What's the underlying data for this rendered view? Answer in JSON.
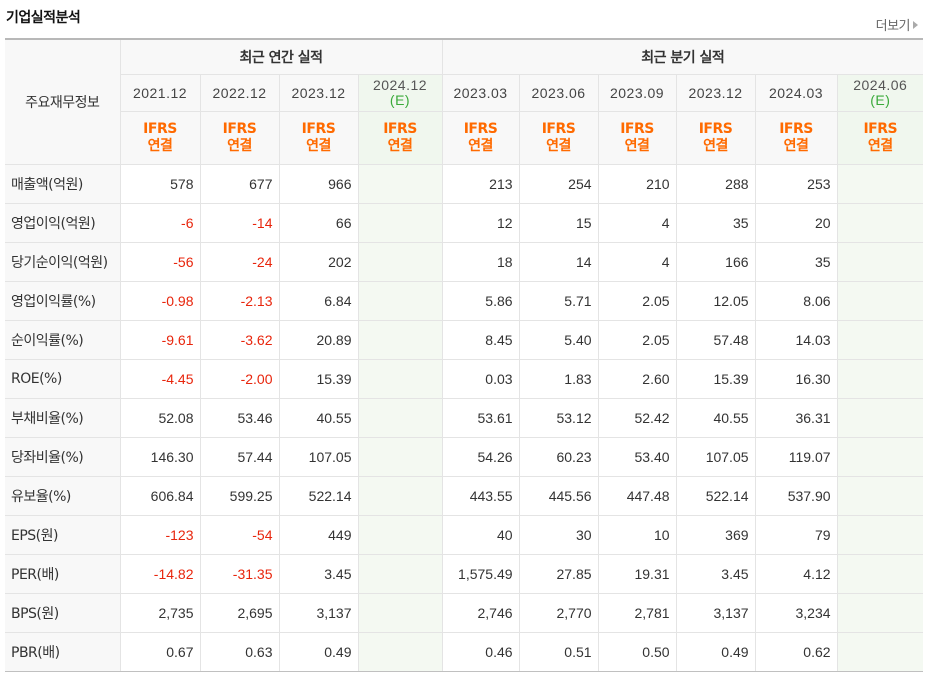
{
  "header": {
    "title": "기업실적분석",
    "more_label": "더보기"
  },
  "table": {
    "row_header_label": "주요재무정보",
    "groups": [
      "최근 연간 실적",
      "최근 분기 실적"
    ],
    "periods": [
      "2021.12",
      "2022.12",
      "2023.12",
      "2024.12",
      "2023.03",
      "2023.06",
      "2023.09",
      "2023.12",
      "2024.03",
      "2024.06"
    ],
    "estimate_marker": "(E)",
    "ifrs_line1": "IFRS",
    "ifrs_line2": "연결",
    "rows": [
      {
        "label": "매출액(억원)",
        "values": [
          "578",
          "677",
          "966",
          "",
          "213",
          "254",
          "210",
          "288",
          "253",
          ""
        ]
      },
      {
        "label": "영업이익(억원)",
        "values": [
          "-6",
          "-14",
          "66",
          "",
          "12",
          "15",
          "4",
          "35",
          "20",
          ""
        ]
      },
      {
        "label": "당기순이익(억원)",
        "values": [
          "-56",
          "-24",
          "202",
          "",
          "18",
          "14",
          "4",
          "166",
          "35",
          ""
        ]
      },
      {
        "label": "영업이익률(%)",
        "values": [
          "-0.98",
          "-2.13",
          "6.84",
          "",
          "5.86",
          "5.71",
          "2.05",
          "12.05",
          "8.06",
          ""
        ]
      },
      {
        "label": "순이익률(%)",
        "values": [
          "-9.61",
          "-3.62",
          "20.89",
          "",
          "8.45",
          "5.40",
          "2.05",
          "57.48",
          "14.03",
          ""
        ]
      },
      {
        "label": "ROE(%)",
        "values": [
          "-4.45",
          "-2.00",
          "15.39",
          "",
          "0.03",
          "1.83",
          "2.60",
          "15.39",
          "16.30",
          ""
        ]
      },
      {
        "label": "부채비율(%)",
        "values": [
          "52.08",
          "53.46",
          "40.55",
          "",
          "53.61",
          "53.12",
          "52.42",
          "40.55",
          "36.31",
          ""
        ]
      },
      {
        "label": "당좌비율(%)",
        "values": [
          "146.30",
          "57.44",
          "107.05",
          "",
          "54.26",
          "60.23",
          "53.40",
          "107.05",
          "119.07",
          ""
        ]
      },
      {
        "label": "유보율(%)",
        "values": [
          "606.84",
          "599.25",
          "522.14",
          "",
          "443.55",
          "445.56",
          "447.48",
          "522.14",
          "537.90",
          ""
        ]
      },
      {
        "label": "EPS(원)",
        "values": [
          "-123",
          "-54",
          "449",
          "",
          "40",
          "30",
          "10",
          "369",
          "79",
          ""
        ]
      },
      {
        "label": "PER(배)",
        "values": [
          "-14.82",
          "-31.35",
          "3.45",
          "",
          "1,575.49",
          "27.85",
          "19.31",
          "3.45",
          "4.12",
          ""
        ]
      },
      {
        "label": "BPS(원)",
        "values": [
          "2,735",
          "2,695",
          "3,137",
          "",
          "2,746",
          "2,770",
          "2,781",
          "3,137",
          "3,234",
          ""
        ]
      },
      {
        "label": "PBR(배)",
        "values": [
          "0.67",
          "0.63",
          "0.49",
          "",
          "0.46",
          "0.51",
          "0.50",
          "0.49",
          "0.62",
          ""
        ]
      }
    ]
  },
  "colors": {
    "negative": "#e8250c",
    "ifrs": "#ff6a00",
    "estimate_marker": "#3aaa3a",
    "estimate_bg": "#f4f9f2"
  }
}
